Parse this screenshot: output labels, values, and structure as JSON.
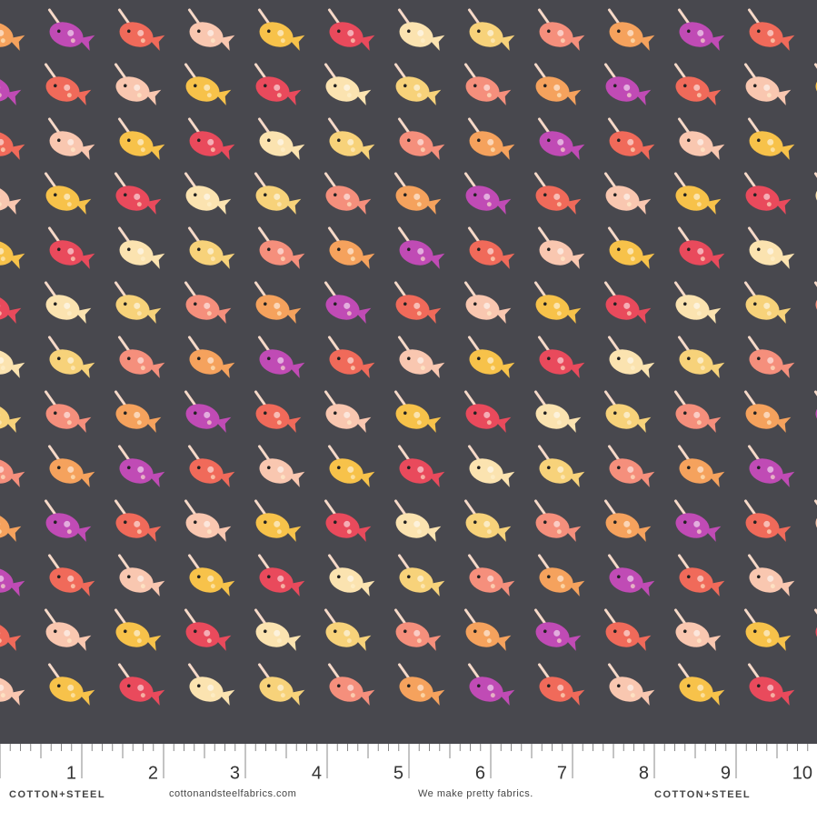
{
  "ruler": {
    "numbers": [
      "1",
      "2",
      "3",
      "4",
      "5",
      "6",
      "7",
      "8",
      "9",
      "10"
    ]
  },
  "footer": {
    "brand_left": "COTTON+STEEL",
    "website": "cottonandsteelfabrics.com",
    "tagline": "We make pretty fabrics.",
    "brand_right": "COTTON+STEEL"
  }
}
